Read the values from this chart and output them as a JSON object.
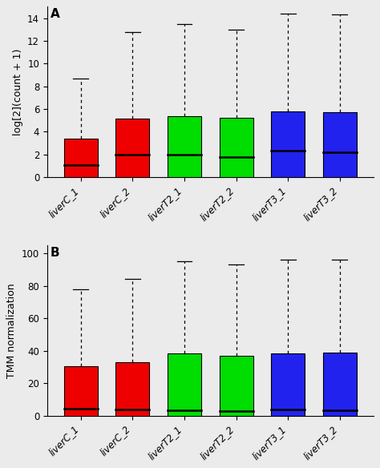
{
  "panel_A": {
    "labels": [
      "liverC_1",
      "liverC_2",
      "liverT2_1",
      "liverT2_2",
      "liverT3_1",
      "liverT3_2"
    ],
    "colors": [
      "#EE0000",
      "#EE0000",
      "#00DD00",
      "#00DD00",
      "#2222EE",
      "#2222EE"
    ],
    "whisker_low": [
      0.0,
      0.0,
      0.0,
      0.0,
      0.0,
      0.0
    ],
    "q1": [
      0.0,
      0.0,
      0.0,
      0.0,
      0.0,
      0.0
    ],
    "median": [
      1.1,
      2.0,
      2.0,
      1.8,
      2.35,
      2.2
    ],
    "q3": [
      3.4,
      5.15,
      5.4,
      5.25,
      5.8,
      5.7
    ],
    "whisker_high": [
      8.7,
      12.8,
      13.5,
      13.0,
      14.4,
      14.3
    ],
    "ylabel": "log[2](count + 1)",
    "ylim": [
      0,
      15
    ],
    "yticks": [
      0,
      2,
      4,
      6,
      8,
      10,
      12,
      14
    ],
    "panel_label": "A"
  },
  "panel_B": {
    "labels": [
      "liverC_1",
      "liverC_2",
      "liverT2_1",
      "liverT2_2",
      "liverT3_1",
      "liverT3_2"
    ],
    "colors": [
      "#EE0000",
      "#EE0000",
      "#00DD00",
      "#00DD00",
      "#2222EE",
      "#2222EE"
    ],
    "whisker_low": [
      0.0,
      0.0,
      0.0,
      0.0,
      0.0,
      0.0
    ],
    "q1": [
      0.0,
      0.0,
      0.0,
      0.0,
      0.0,
      0.0
    ],
    "median": [
      4.5,
      4.0,
      3.5,
      3.0,
      4.0,
      3.5
    ],
    "q3": [
      30.5,
      33.0,
      38.5,
      37.0,
      38.5,
      39.0
    ],
    "whisker_high": [
      78.0,
      84.0,
      95.0,
      93.0,
      96.0,
      96.0
    ],
    "ylabel": "TMM normalization",
    "ylim": [
      0,
      105
    ],
    "yticks": [
      0,
      20,
      40,
      60,
      80,
      100
    ],
    "panel_label": "B"
  },
  "fig_bg": "#EBEBEB",
  "plot_bg": "#EBEBEB",
  "fig_width": 4.74,
  "fig_height": 5.84,
  "dpi": 100
}
